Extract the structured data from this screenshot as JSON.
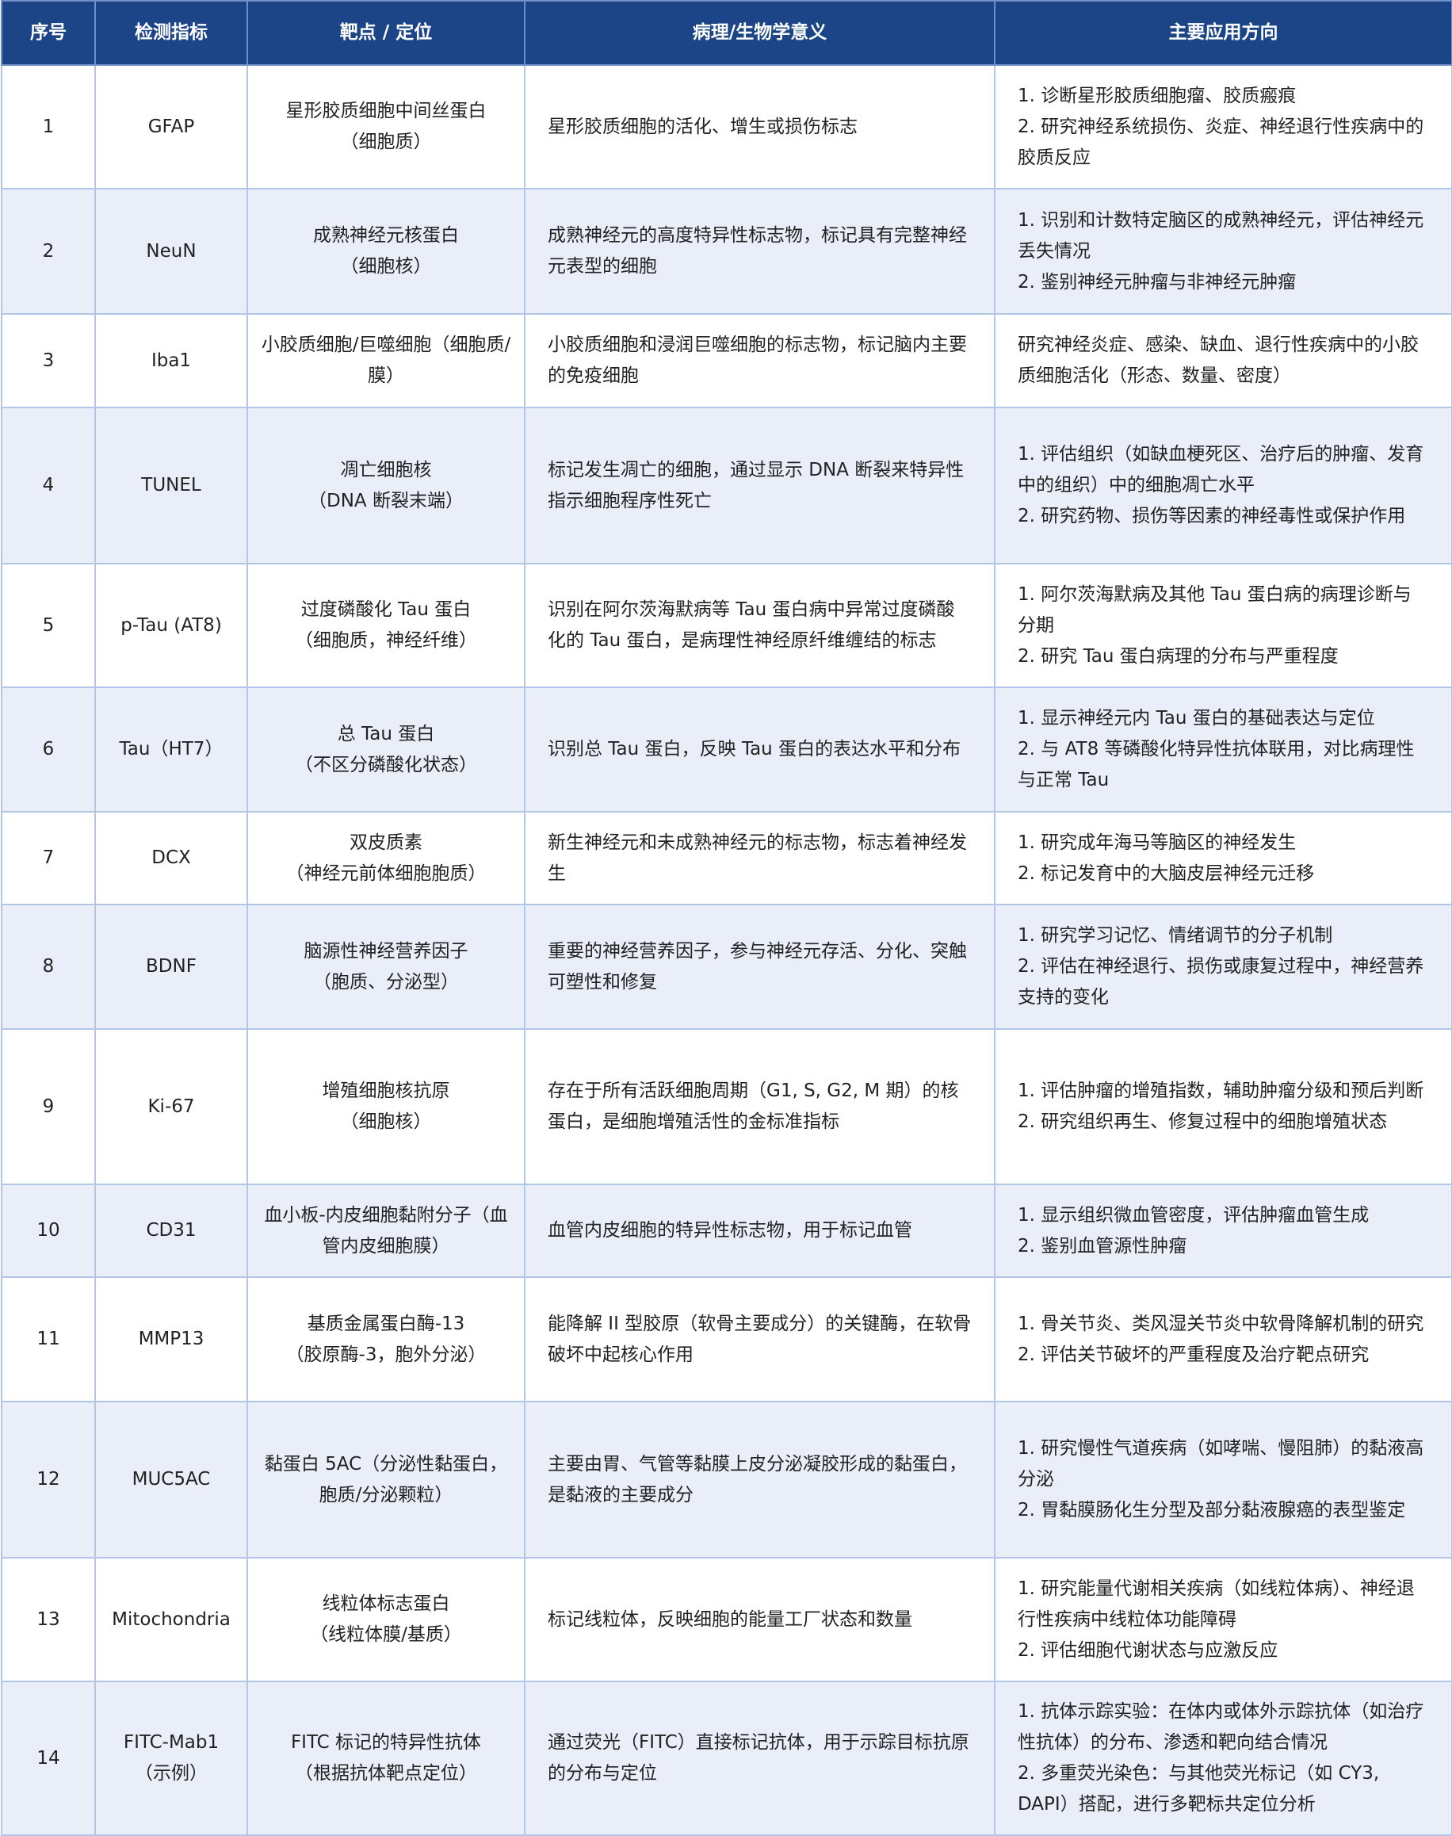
{
  "header": [
    "序号",
    "检测指标",
    "靶点 / 定位",
    "病理/生物学意义",
    "主要应用方向"
  ],
  "rows": [
    {
      "no": "1",
      "marker": "GFAP",
      "target": "星形胶质细胞中间丝蛋白\n（细胞质）",
      "meaning": "星形胶质细胞的活化、增生或损伤标志",
      "application": "1. 诊断星形胶质细胞瘤、胶质瘢痕\n2. 研究神经系统损伤、炎症、神经退行性疾病中的胶质反应"
    },
    {
      "no": "2",
      "marker": "NeuN",
      "target": "成熟神经元核蛋白\n（细胞核）",
      "meaning": "成熟神经元的高度特异性标志物，标记具有完整神经元表型的细胞",
      "application": "1. 识别和计数特定脑区的成熟神经元，评估神经元丢失情况\n2. 鉴别神经元肿瘤与非神经元肿瘤"
    },
    {
      "no": "3",
      "marker": "Iba1",
      "target": "小胶质细胞/巨噬细胞（细胞质/膜）",
      "meaning": "小胶质细胞和浸润巨噬细胞的标志物，标记脑内主要的免疫细胞",
      "application": "研究神经炎症、感染、缺血、退行性疾病中的小胶质细胞活化（形态、数量、密度）"
    },
    {
      "no": "4",
      "marker": "TUNEL",
      "target": "凋亡细胞核\n（DNA 断裂末端）",
      "meaning": "标记发生凋亡的细胞，通过显示 DNA 断裂来特异性指示细胞程序性死亡",
      "application": "1. 评估组织（如缺血梗死区、治疗后的肿瘤、发育中的组织）中的细胞凋亡水平\n2. 研究药物、损伤等因素的神经毒性或保护作用"
    },
    {
      "no": "5",
      "marker": "p-Tau (AT8)",
      "target": "过度磷酸化 Tau 蛋白\n（细胞质，神经纤维）",
      "meaning": "识别在阿尔茨海默病等 Tau 蛋白病中异常过度磷酸化的 Tau 蛋白，是病理性神经原纤维缠结的标志",
      "application": "1. 阿尔茨海默病及其他 Tau 蛋白病的病理诊断与分期\n2. 研究 Tau 蛋白病理的分布与严重程度"
    },
    {
      "no": "6",
      "marker": "Tau（HT7）",
      "target": "总 Tau 蛋白\n（不区分磷酸化状态）",
      "meaning": "识别总 Tau 蛋白，反映 Tau 蛋白的表达水平和分布",
      "application": "1. 显示神经元内 Tau 蛋白的基础表达与定位\n2. 与 AT8 等磷酸化特异性抗体联用，对比病理性与正常 Tau"
    },
    {
      "no": "7",
      "marker": "DCX",
      "target": "双皮质素\n（神经元前体细胞胞质）",
      "meaning": "新生神经元和未成熟神经元的标志物，标志着神经发生",
      "application": "1. 研究成年海马等脑区的神经发生\n2. 标记发育中的大脑皮层神经元迁移"
    },
    {
      "no": "8",
      "marker": "BDNF",
      "target": "脑源性神经营养因子\n（胞质、分泌型）",
      "meaning": "重要的神经营养因子，参与神经元存活、分化、突触可塑性和修复",
      "application": "1. 研究学习记忆、情绪调节的分子机制\n2. 评估在神经退行、损伤或康复过程中，神经营养支持的变化"
    },
    {
      "no": "9",
      "marker": "Ki-67",
      "target": "增殖细胞核抗原\n（细胞核）",
      "meaning": "存在于所有活跃细胞周期（G1, S, G2, M 期）的核蛋白，是细胞增殖活性的金标准指标",
      "application": "1. 评估肿瘤的增殖指数，辅助肿瘤分级和预后判断\n2. 研究组织再生、修复过程中的细胞增殖状态"
    },
    {
      "no": "10",
      "marker": "CD31",
      "target": "血小板-内皮细胞黏附分子（血管内皮细胞膜）",
      "meaning": "血管内皮细胞的特异性标志物，用于标记血管",
      "application": "1. 显示组织微血管密度，评估肿瘤血管生成\n2. 鉴别血管源性肿瘤"
    },
    {
      "no": "11",
      "marker": "MMP13",
      "target": "基质金属蛋白酶-13\n（胶原酶-3，胞外分泌）",
      "meaning": "能降解 II 型胶原（软骨主要成分）的关键酶，在软骨破坏中起核心作用",
      "application": "1. 骨关节炎、类风湿关节炎中软骨降解机制的研究\n2. 评估关节破坏的严重程度及治疗靶点研究"
    },
    {
      "no": "12",
      "marker": "MUC5AC",
      "target": "黏蛋白 5AC（分泌性黏蛋白，胞质/分泌颗粒）",
      "meaning": "主要由胃、气管等黏膜上皮分泌凝胶形成的黏蛋白，是黏液的主要成分",
      "application": "1. 研究慢性气道疾病（如哮喘、慢阻肺）的黏液高分泌\n2. 胃黏膜肠化生分型及部分黏液腺癌的表型鉴定"
    },
    {
      "no": "13",
      "marker": "Mitochondria",
      "target": "线粒体标志蛋白\n（线粒体膜/基质）",
      "meaning": "标记线粒体，反映细胞的能量工厂状态和数量",
      "application": "1. 研究能量代谢相关疾病（如线粒体病）、神经退行性疾病中线粒体功能障碍\n2. 评估细胞代谢状态与应激反应"
    },
    {
      "no": "14",
      "marker": "FITC-Mab1\n（示例）",
      "target": "FITC 标记的特异性抗体\n（根据抗体靶点定位）",
      "meaning": "通过荧光（FITC）直接标记抗体，用于示踪目标抗原的分布与定位",
      "application": "1. 抗体示踪实验：在体内或体外示踪抗体（如治疗性抗体）的分布、渗透和靶向结合情况\n2. 多重荧光染色：与其他荧光标记（如 CY3, DAPI）搭配，进行多靶标共定位分析"
    }
  ]
}
